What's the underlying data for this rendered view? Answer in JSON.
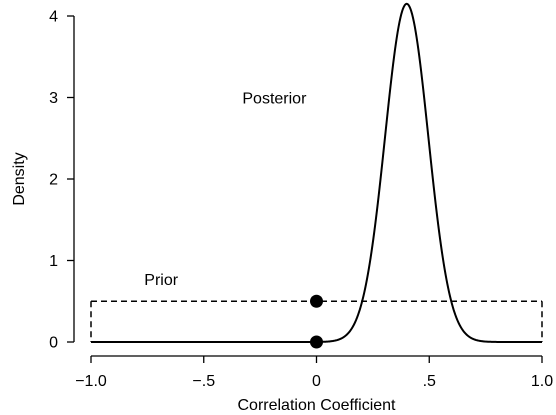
{
  "chart_data": {
    "type": "line",
    "xlabel": "Correlation Coefficient",
    "ylabel": "Density",
    "xlim": [
      -1.0,
      1.0
    ],
    "ylim": [
      0,
      4
    ],
    "x_ticks": [
      {
        "value": -1.0,
        "label": "−1.0"
      },
      {
        "value": -0.5,
        "label": "−.5"
      },
      {
        "value": 0.0,
        "label": "0"
      },
      {
        "value": 0.5,
        "label": ".5"
      },
      {
        "value": 1.0,
        "label": "1.0"
      }
    ],
    "y_ticks": [
      {
        "value": 0,
        "label": "0"
      },
      {
        "value": 1,
        "label": "1"
      },
      {
        "value": 2,
        "label": "2"
      },
      {
        "value": 3,
        "label": "3"
      },
      {
        "value": 4,
        "label": "4"
      }
    ],
    "grid": false,
    "series": [
      {
        "name": "Prior",
        "style": "dashed",
        "x": [
          -1.0,
          1.0
        ],
        "y": [
          0.5,
          0.5
        ]
      },
      {
        "name": "Posterior",
        "style": "solid",
        "mean": 0.4,
        "sd": 0.096,
        "peak_density": 4.15
      }
    ],
    "points": [
      {
        "name": "prior-at-zero",
        "x": 0,
        "y": 0.5
      },
      {
        "name": "posterior-at-zero",
        "x": 0,
        "y": 0.0
      }
    ],
    "annotations": [
      {
        "text": "Posterior",
        "x": -0.2,
        "y": 3.0
      },
      {
        "text": "Prior",
        "x": -0.68,
        "y": 0.8
      }
    ]
  }
}
